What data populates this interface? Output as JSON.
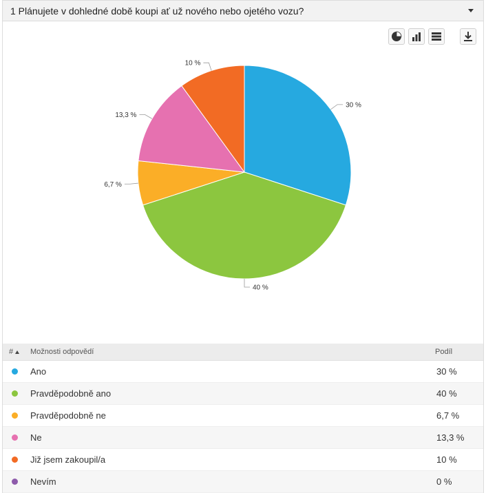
{
  "header": {
    "title": "1 Plánujete v dohledné době koupi ať už nového nebo ojetého vozu?"
  },
  "toolbar": {
    "icons": [
      "pie-chart-icon",
      "bar-chart-icon",
      "table-view-icon",
      "download-icon"
    ]
  },
  "table": {
    "col_num": "#",
    "col_option": "Možnosti odpovědí",
    "col_share": "Podíl",
    "rows": [
      {
        "label": "Ano",
        "value": "30 %",
        "color": "#26a9e0"
      },
      {
        "label": "Pravděpodobně ano",
        "value": "40 %",
        "color": "#8cc63f"
      },
      {
        "label": "Pravděpodobně ne",
        "value": "6,7 %",
        "color": "#fbae27"
      },
      {
        "label": "Ne",
        "value": "13,3 %",
        "color": "#e671b0"
      },
      {
        "label": "Již jsem zakoupil/a",
        "value": "10 %",
        "color": "#f26b24"
      },
      {
        "label": "Nevím",
        "value": "0 %",
        "color": "#8e5bab"
      }
    ]
  },
  "chart_data": {
    "type": "pie",
    "categories": [
      "Ano",
      "Pravděpodobně ano",
      "Pravděpodobně ne",
      "Ne",
      "Již jsem zakoupil/a",
      "Nevím"
    ],
    "values": [
      30,
      40,
      6.7,
      13.3,
      10,
      0
    ],
    "labels": [
      "30 %",
      "40 %",
      "6,7 %",
      "13,3 %",
      "10 %",
      "0 %"
    ],
    "colors": [
      "#26a9e0",
      "#8cc63f",
      "#fbae27",
      "#e671b0",
      "#f26b24",
      "#8e5bab"
    ]
  }
}
